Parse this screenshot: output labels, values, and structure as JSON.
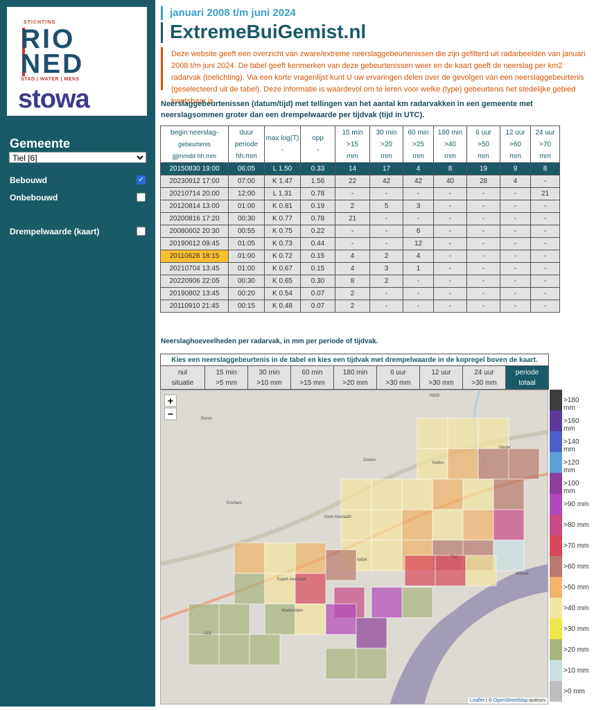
{
  "logo": {
    "stichting": "STICHTING",
    "rio": "RIO",
    "ned": "NED",
    "tagline": "STAD | WATER | MENS",
    "stowa": "stowa"
  },
  "sidebar": {
    "gemeente_title": "Gemeente",
    "gemeente_selected": "Tiel [6]",
    "bebouwd_label": "Bebouwd",
    "bebouwd_checked": true,
    "onbebouwd_label": "Onbebouwd",
    "onbebouwd_checked": false,
    "drempel_label": "Drempelwaarde (kaart)",
    "drempel_checked": false,
    "check_mark": "✓"
  },
  "header": {
    "subtitle": "januari 2008 t/m juni 2024",
    "title": "ExtremeBuiGemist.nl",
    "intro": "Deze website geeft een overzicht van zware/extreme neerslaggebeurtenissen die zijn gefilterd uit radarbeelden van januari 2008 t/m juni 2024. De tabel geeft kenmerken van deze gebeurtenissen weer en de kaart geeft de neerslag per km2 radarvak (toelichting). Via een korte vragenlijst kunt U uw ervaringen delen over de gevolgen van een neerslaggebeurtenis (geselecteerd uit de tabel). Deze informatie is waardevol om te leren voor welke (type) gebeurtenis het stedelijke gebied kwetsbaar is."
  },
  "events": {
    "caption": "Neerslaggebeurtenissen (datum/tijd) met tellingen van het aantal km radarvakken in een gemeente met neerslagsommen groter dan een drempelwaarde per tijdvak (tijd in UTC).",
    "headers": [
      [
        "begin neerslag-",
        "gebeurtenis",
        "jjjjmmdd hh:mm"
      ],
      [
        "duur",
        "periode",
        "hh:mm"
      ],
      [
        "max log(T)",
        "-"
      ],
      [
        "opp",
        "-"
      ],
      [
        "15 min",
        ">15",
        "mm"
      ],
      [
        "30 min",
        ">20",
        "mm"
      ],
      [
        "60 min",
        ">25",
        "mm"
      ],
      [
        "180 min",
        ">40",
        "mm"
      ],
      [
        "6 uur",
        ">50",
        "mm"
      ],
      [
        "12 uur",
        ">60",
        "mm"
      ],
      [
        "24 uur",
        ">70",
        "mm"
      ]
    ],
    "rows": [
      [
        "20150830 19:00",
        "06:05",
        "L 1.50",
        "0.33",
        "14",
        "17",
        "4",
        "8",
        "19",
        "9",
        "8"
      ],
      [
        "20230912 17:00",
        "07:00",
        "K 1.47",
        "1.56",
        "22",
        "42",
        "42",
        "40",
        "28",
        "4",
        "-"
      ],
      [
        "20210714 20:00",
        "12:00",
        "L 1.31",
        "0.78",
        "-",
        "-",
        "-",
        "-",
        "-",
        "-",
        "21"
      ],
      [
        "20120814 13:00",
        "01:00",
        "K 0.81",
        "0.19",
        "2",
        "5",
        "3",
        "-",
        "-",
        "-",
        "-"
      ],
      [
        "20200816 17:20",
        "00:30",
        "K 0.77",
        "0.78",
        "21",
        "-",
        "-",
        "-",
        "-",
        "-",
        "-"
      ],
      [
        "20080602 20:30",
        "00:55",
        "K 0.75",
        "0.22",
        "-",
        "-",
        "6",
        "-",
        "-",
        "-",
        "-"
      ],
      [
        "20190612 09:45",
        "01:05",
        "K 0.73",
        "0.44",
        "-",
        "-",
        "12",
        "-",
        "-",
        "-",
        "-"
      ],
      [
        "20110628 18:15",
        "01:00",
        "K 0.72",
        "0.15",
        "4",
        "2",
        "4",
        "-",
        "-",
        "-",
        "-"
      ],
      [
        "20210704 13:45",
        "01:00",
        "K 0.67",
        "0.15",
        "4",
        "3",
        "1",
        "-",
        "-",
        "-",
        "-"
      ],
      [
        "20220906 22:05",
        "00:30",
        "K 0.65",
        "0.30",
        "8",
        "2",
        "-",
        "-",
        "-",
        "-",
        "-"
      ],
      [
        "20190802 13:45",
        "00:20",
        "K 0.54",
        "0.07",
        "2",
        "-",
        "-",
        "-",
        "-",
        "-",
        "-"
      ],
      [
        "20110910 21:45",
        "00:15",
        "K 0.48",
        "0.07",
        "2",
        "-",
        "-",
        "-",
        "-",
        "-",
        "-"
      ]
    ]
  },
  "periods": {
    "caption": "Neerslaghoeveelheden per radarvak, in mm per periode of tijdvak.",
    "instruction": "Kies een neerslaggebeurtenis in de tabel en kies een tijdvak met drempelwaarde in de kopregel boven de kaart.",
    "items": [
      [
        "nul",
        "situatie"
      ],
      [
        "15 min",
        ">5 mm"
      ],
      [
        "30 min",
        ">10 mm"
      ],
      [
        "60 min",
        ">15 mm"
      ],
      [
        "180 min",
        ">20 mm"
      ],
      [
        "6 uur",
        ">30 mm"
      ],
      [
        "12 uur",
        ">30 mm"
      ],
      [
        "24 uur",
        ">30 mm"
      ],
      [
        "periode",
        "totaal"
      ]
    ]
  },
  "map": {
    "zoom_in": "+",
    "zoom_out": "−",
    "attribution_leaflet": "Leaflet",
    "attribution_sep": " | © ",
    "attribution_osm": "OpenStreetMap",
    "attribution_suffix": "-auteurs",
    "places": [
      "Buren",
      "Zoelen",
      "Kellen",
      "Meder",
      "Erichem",
      "Kerk-Avezaath",
      "N834",
      "Tiel",
      "Kapel-Avezaath",
      "Wadenoijen",
      "Wamel",
      "A15",
      "N835"
    ]
  },
  "legend": {
    "items": [
      {
        "label": ">180 mm",
        "color": "#3c3c3c"
      },
      {
        "label": ">160 mm",
        "color": "#5b3a9c"
      },
      {
        "label": ">140 mm",
        "color": "#4a5fc8"
      },
      {
        "label": ">120 mm",
        "color": "#5f9fd8"
      },
      {
        "label": ">100 mm",
        "color": "#8b3f98"
      },
      {
        "label": ">90 mm",
        "color": "#b048b8"
      },
      {
        "label": ">80 mm",
        "color": "#c94a86"
      },
      {
        "label": ">70 mm",
        "color": "#d9485a"
      },
      {
        "label": ">60 mm",
        "color": "#b87a6c"
      },
      {
        "label": ">50 mm",
        "color": "#f0b46a"
      },
      {
        "label": ">40 mm",
        "color": "#f1e6a0"
      },
      {
        "label": ">30 mm",
        "color": "#ece84a"
      },
      {
        "label": ">20 mm",
        "color": "#a7b47c"
      },
      {
        "label": ">10 mm",
        "color": "#c8e0e4"
      },
      {
        "label": ">0 mm",
        "color": "#bdbdbd"
      }
    ]
  }
}
